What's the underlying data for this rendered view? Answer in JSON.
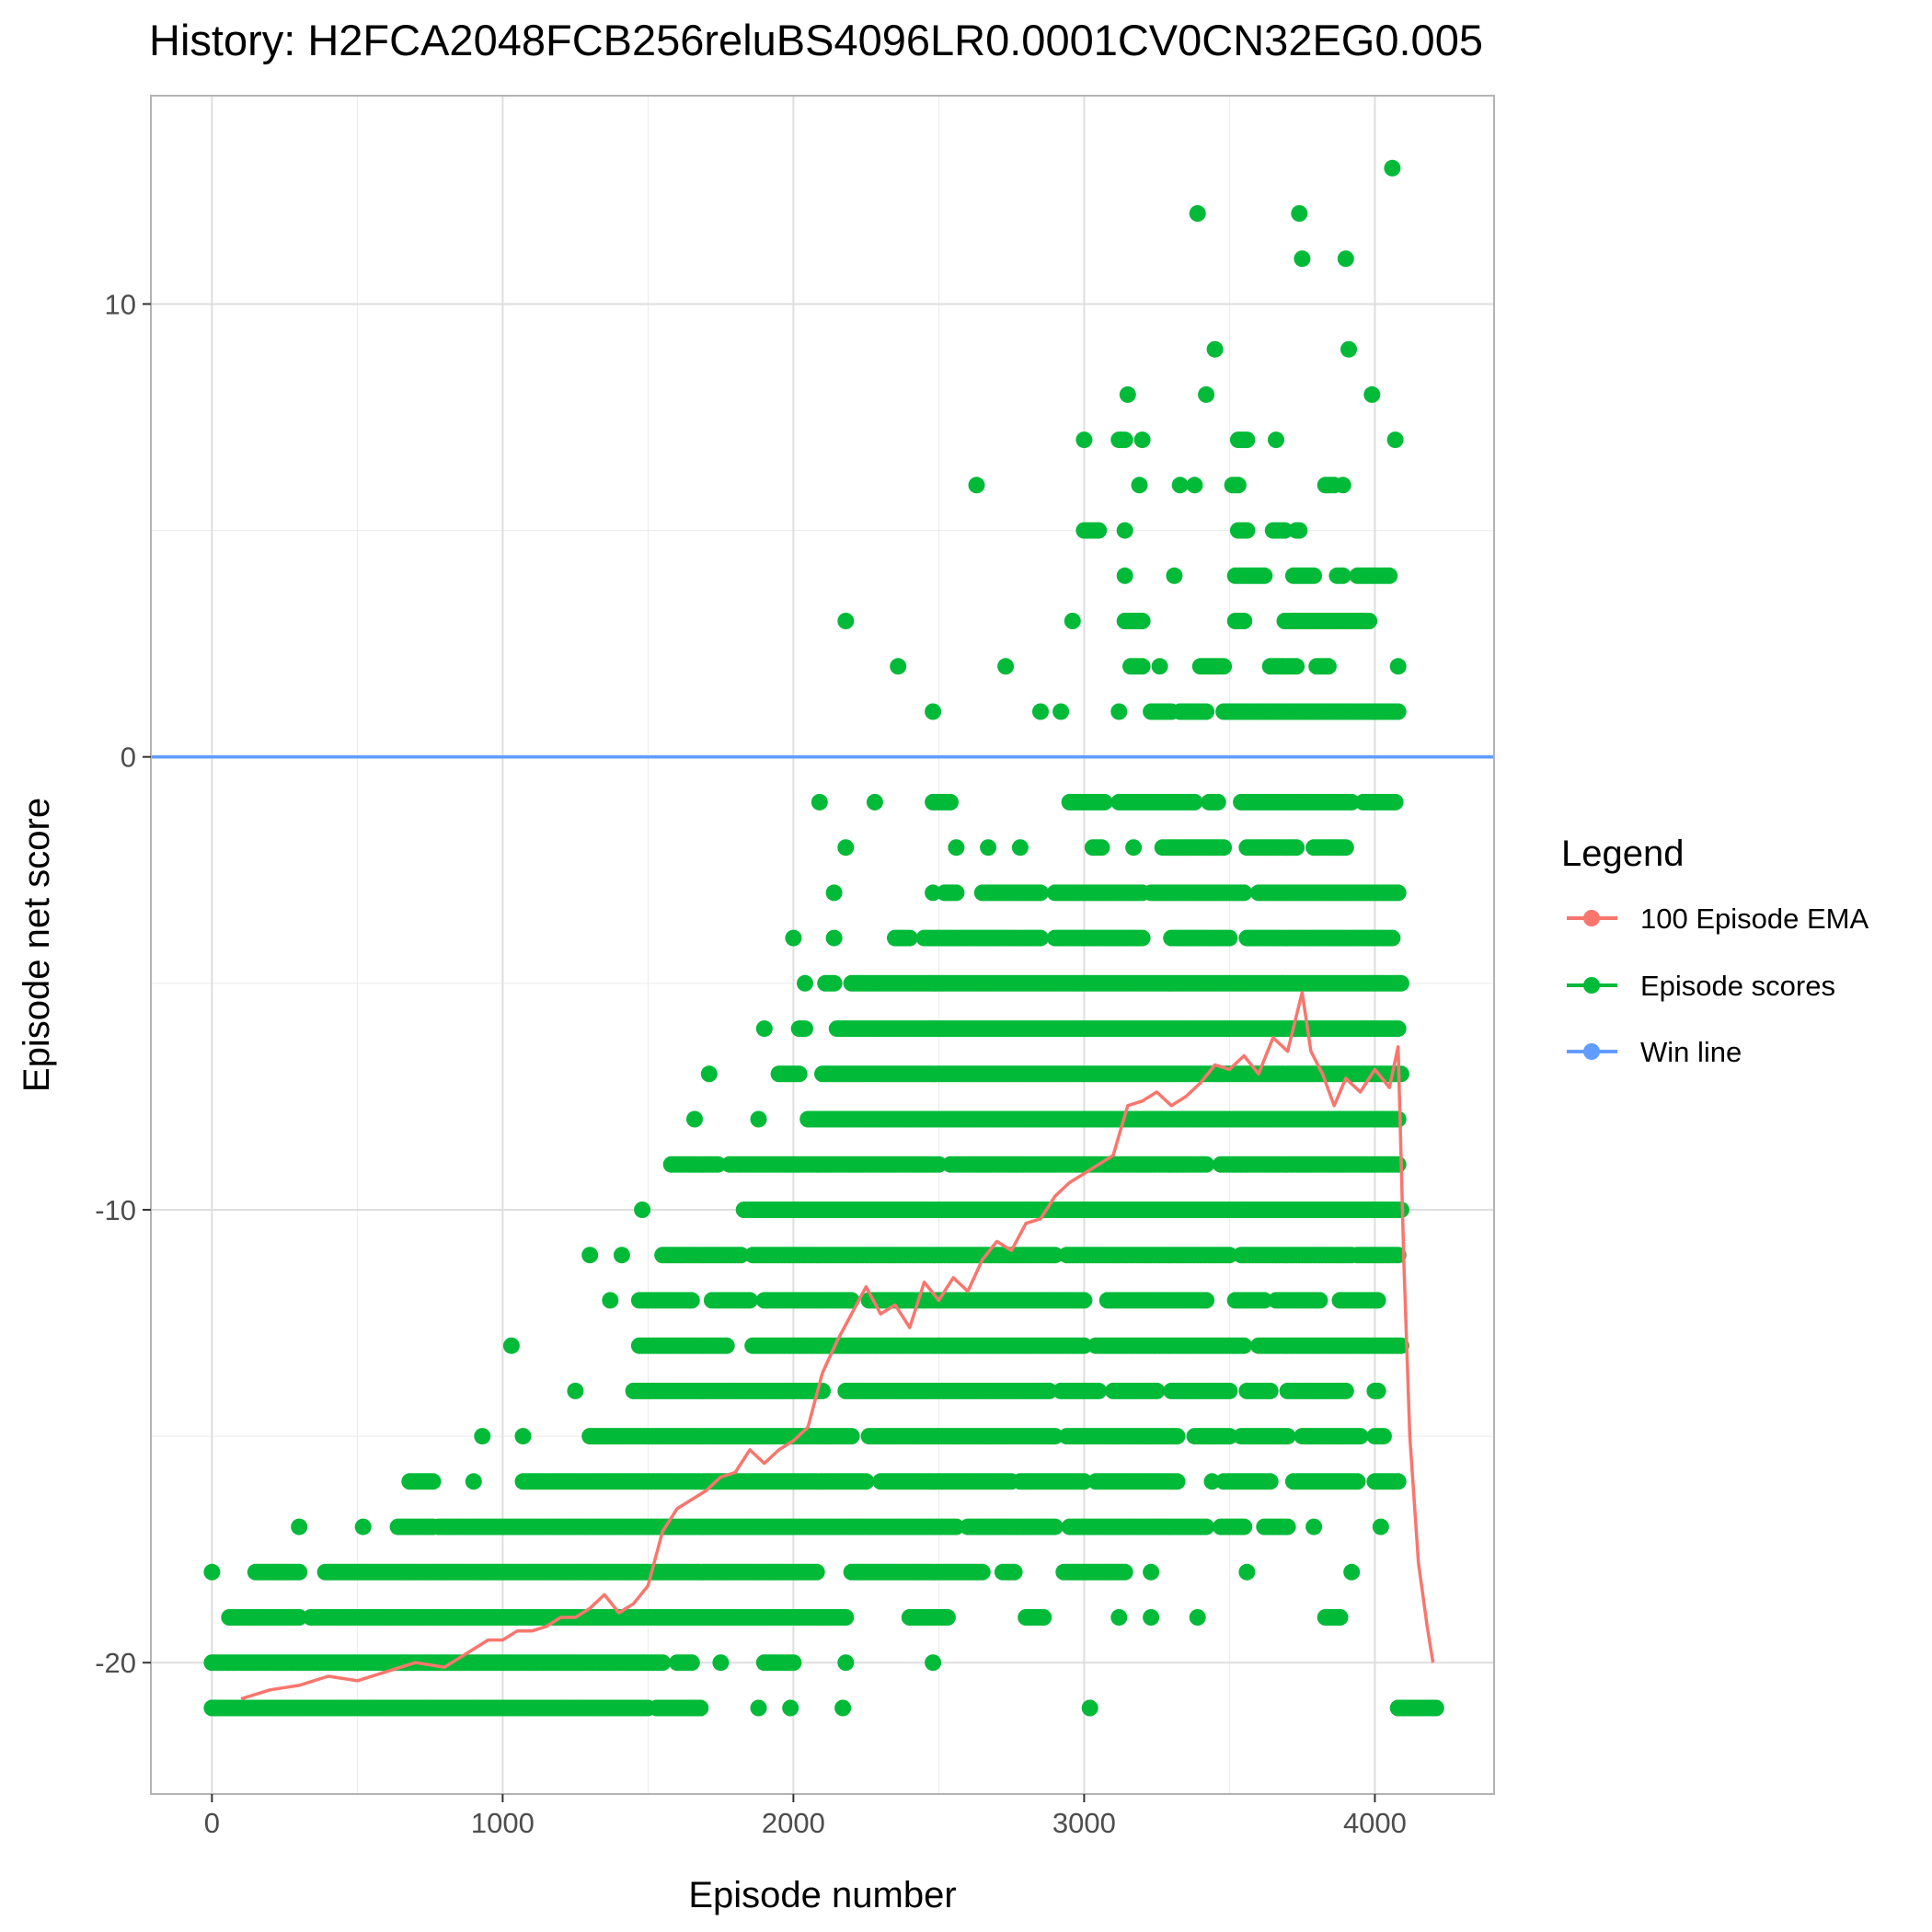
{
  "chart_data": {
    "type": "scatter",
    "title": "History: H2FCA2048FCB256reluBS4096LR0.0001CV0CN32EG0.005",
    "xlabel": "Episode number",
    "ylabel": "Episode net score",
    "xlim": [
      -210,
      4410
    ],
    "ylim": [
      -22.9,
      14.6
    ],
    "x_ticks": [
      0,
      1000,
      2000,
      3000,
      4000
    ],
    "y_ticks": [
      -20,
      -10,
      0,
      10
    ],
    "grid": true,
    "legend": {
      "title": "Legend",
      "position": "right",
      "entries": [
        "100 Episode EMA",
        "Episode scores",
        "Win line"
      ]
    },
    "colors": {
      "ema": "#F8766D",
      "scores": "#00BA38",
      "win": "#619CFF",
      "grid": "#ebebeb",
      "panel_border": "#b3b3b3"
    },
    "series": [
      {
        "name": "Episode scores",
        "kind": "points",
        "description": "Episode scores grouped by score level, listed as [score, first_episode, last_episode]; points are densely packed across each range.",
        "bands": [
          [
            -21,
            0,
            1500
          ],
          [
            -21,
            1530,
            1680
          ],
          [
            -21,
            1880,
            1880
          ],
          [
            -21,
            1990,
            1990
          ],
          [
            -21,
            2170,
            2170
          ],
          [
            -21,
            3020,
            3020
          ],
          [
            -21,
            4080,
            4210
          ],
          [
            -20,
            0,
            1550
          ],
          [
            -20,
            1600,
            1650
          ],
          [
            -20,
            1750,
            1750
          ],
          [
            -20,
            1900,
            2000
          ],
          [
            -20,
            2180,
            2180
          ],
          [
            -20,
            2480,
            2480
          ],
          [
            -19,
            60,
            300
          ],
          [
            -19,
            340,
            2180
          ],
          [
            -19,
            2400,
            2530
          ],
          [
            -19,
            2800,
            2860
          ],
          [
            -19,
            3120,
            3120
          ],
          [
            -19,
            3230,
            3230
          ],
          [
            -19,
            3390,
            3390
          ],
          [
            -19,
            3830,
            3880
          ],
          [
            -18,
            0,
            0
          ],
          [
            -18,
            150,
            300
          ],
          [
            -18,
            390,
            2080
          ],
          [
            -18,
            2200,
            2650
          ],
          [
            -18,
            2720,
            2760
          ],
          [
            -18,
            2930,
            3140
          ],
          [
            -18,
            3230,
            3230
          ],
          [
            -18,
            3560,
            3560
          ],
          [
            -18,
            3920,
            3920
          ],
          [
            -17,
            300,
            300
          ],
          [
            -17,
            520,
            520
          ],
          [
            -17,
            640,
            760
          ],
          [
            -17,
            780,
            2560
          ],
          [
            -17,
            2600,
            2900
          ],
          [
            -17,
            2950,
            3420
          ],
          [
            -17,
            3470,
            3550
          ],
          [
            -17,
            3620,
            3700
          ],
          [
            -17,
            3790,
            3790
          ],
          [
            -17,
            4020,
            4020
          ],
          [
            -16,
            680,
            760
          ],
          [
            -16,
            900,
            900
          ],
          [
            -16,
            1070,
            2250
          ],
          [
            -16,
            2300,
            2750
          ],
          [
            -16,
            2780,
            3000
          ],
          [
            -16,
            3040,
            3320
          ],
          [
            -16,
            3440,
            3440
          ],
          [
            -16,
            3480,
            3640
          ],
          [
            -16,
            3720,
            3940
          ],
          [
            -16,
            4000,
            4080
          ],
          [
            -15,
            930,
            930
          ],
          [
            -15,
            1070,
            1070
          ],
          [
            -15,
            1300,
            2200
          ],
          [
            -15,
            2260,
            2900
          ],
          [
            -15,
            2940,
            3320
          ],
          [
            -15,
            3380,
            3500
          ],
          [
            -15,
            3540,
            3700
          ],
          [
            -15,
            3750,
            3950
          ],
          [
            -15,
            4000,
            4030
          ],
          [
            -14,
            1250,
            1250
          ],
          [
            -14,
            1450,
            2100
          ],
          [
            -14,
            2180,
            2880
          ],
          [
            -14,
            2920,
            3050
          ],
          [
            -14,
            3100,
            3250
          ],
          [
            -14,
            3300,
            3500
          ],
          [
            -14,
            3560,
            3640
          ],
          [
            -14,
            3700,
            3900
          ],
          [
            -14,
            4000,
            4010
          ],
          [
            -13,
            1030,
            1030
          ],
          [
            -13,
            1470,
            1770
          ],
          [
            -13,
            1860,
            3000
          ],
          [
            -13,
            3040,
            3550
          ],
          [
            -13,
            3600,
            4090
          ],
          [
            -12,
            1370,
            1370
          ],
          [
            -12,
            1470,
            1650
          ],
          [
            -12,
            1720,
            1850
          ],
          [
            -12,
            1900,
            2200
          ],
          [
            -12,
            2260,
            3000
          ],
          [
            -12,
            3080,
            3420
          ],
          [
            -12,
            3520,
            3620
          ],
          [
            -12,
            3660,
            3810
          ],
          [
            -12,
            3880,
            4010
          ],
          [
            -11,
            1300,
            1300
          ],
          [
            -11,
            1410,
            1410
          ],
          [
            -11,
            1550,
            1820
          ],
          [
            -11,
            1860,
            2900
          ],
          [
            -11,
            2940,
            3500
          ],
          [
            -11,
            3540,
            3920
          ],
          [
            -11,
            3940,
            4080
          ],
          [
            -10,
            1480,
            1480
          ],
          [
            -10,
            1830,
            4090
          ],
          [
            -9,
            1580,
            1740
          ],
          [
            -9,
            1780,
            2500
          ],
          [
            -9,
            2540,
            3420
          ],
          [
            -9,
            3470,
            4080
          ],
          [
            -8,
            1660,
            1660
          ],
          [
            -8,
            1880,
            1880
          ],
          [
            -8,
            2050,
            4080
          ],
          [
            -7,
            1710,
            1710
          ],
          [
            -7,
            1950,
            2020
          ],
          [
            -7,
            2100,
            4090
          ],
          [
            -6,
            1900,
            1900
          ],
          [
            -6,
            2020,
            2040
          ],
          [
            -6,
            2150,
            4080
          ],
          [
            -5,
            2040,
            2040
          ],
          [
            -5,
            2110,
            2140
          ],
          [
            -5,
            2200,
            4090
          ],
          [
            -4,
            2000,
            2000
          ],
          [
            -4,
            2140,
            2140
          ],
          [
            -4,
            2350,
            2400
          ],
          [
            -4,
            2450,
            2850
          ],
          [
            -4,
            2900,
            3200
          ],
          [
            -4,
            3300,
            3500
          ],
          [
            -4,
            3560,
            4060
          ],
          [
            -3,
            2140,
            2140
          ],
          [
            -3,
            2480,
            2480
          ],
          [
            -3,
            2520,
            2560
          ],
          [
            -3,
            2650,
            2850
          ],
          [
            -3,
            2900,
            3200
          ],
          [
            -3,
            3230,
            3550
          ],
          [
            -3,
            3600,
            4080
          ],
          [
            -2,
            2180,
            2180
          ],
          [
            -2,
            2560,
            2560
          ],
          [
            -2,
            2670,
            2670
          ],
          [
            -2,
            2780,
            2780
          ],
          [
            -2,
            3030,
            3060
          ],
          [
            -2,
            3170,
            3170
          ],
          [
            -2,
            3270,
            3480
          ],
          [
            -2,
            3560,
            3730
          ],
          [
            -2,
            3790,
            3900
          ],
          [
            -1,
            2090,
            2090
          ],
          [
            -1,
            2280,
            2280
          ],
          [
            -1,
            2480,
            2540
          ],
          [
            -1,
            2950,
            3070
          ],
          [
            -1,
            3120,
            3380
          ],
          [
            -1,
            3430,
            3460
          ],
          [
            -1,
            3540,
            3920
          ],
          [
            -1,
            3960,
            4070
          ],
          [
            1,
            2480,
            2480
          ],
          [
            1,
            2850,
            2850
          ],
          [
            1,
            2920,
            2920
          ],
          [
            1,
            3120,
            3120
          ],
          [
            1,
            3230,
            3300
          ],
          [
            1,
            3330,
            3420
          ],
          [
            1,
            3480,
            4080
          ],
          [
            2,
            2360,
            2360
          ],
          [
            2,
            2730,
            2730
          ],
          [
            2,
            3160,
            3200
          ],
          [
            2,
            3260,
            3260
          ],
          [
            2,
            3400,
            3480
          ],
          [
            2,
            3640,
            3730
          ],
          [
            2,
            3800,
            3840
          ],
          [
            2,
            4080,
            4080
          ],
          [
            3,
            2180,
            2180
          ],
          [
            3,
            2960,
            2960
          ],
          [
            3,
            3140,
            3200
          ],
          [
            3,
            3520,
            3550
          ],
          [
            3,
            3690,
            3980
          ],
          [
            4,
            3140,
            3140
          ],
          [
            4,
            3310,
            3310
          ],
          [
            4,
            3520,
            3620
          ],
          [
            4,
            3720,
            3790
          ],
          [
            4,
            3870,
            3890
          ],
          [
            4,
            3940,
            4050
          ],
          [
            5,
            3000,
            3050
          ],
          [
            5,
            3140,
            3140
          ],
          [
            5,
            3530,
            3560
          ],
          [
            5,
            3650,
            3690
          ],
          [
            5,
            3730,
            3740
          ],
          [
            6,
            2630,
            2630
          ],
          [
            6,
            3190,
            3190
          ],
          [
            6,
            3330,
            3330
          ],
          [
            6,
            3380,
            3380
          ],
          [
            6,
            3510,
            3530
          ],
          [
            6,
            3830,
            3860
          ],
          [
            6,
            3890,
            3890
          ],
          [
            7,
            3000,
            3000
          ],
          [
            7,
            3120,
            3140
          ],
          [
            7,
            3200,
            3200
          ],
          [
            7,
            3530,
            3560
          ],
          [
            7,
            3660,
            3660
          ],
          [
            7,
            4070,
            4070
          ],
          [
            8,
            3150,
            3150
          ],
          [
            8,
            3420,
            3420
          ],
          [
            8,
            3990,
            3990
          ],
          [
            9,
            3450,
            3450
          ],
          [
            9,
            3910,
            3910
          ],
          [
            11,
            3750,
            3750
          ],
          [
            11,
            3900,
            3900
          ],
          [
            12,
            3390,
            3390
          ],
          [
            12,
            3740,
            3740
          ],
          [
            13,
            4060,
            4060
          ]
        ]
      },
      {
        "name": "100 Episode EMA",
        "kind": "line",
        "x": [
          100,
          200,
          300,
          400,
          500,
          600,
          700,
          800,
          850,
          900,
          950,
          1000,
          1050,
          1100,
          1150,
          1200,
          1250,
          1300,
          1350,
          1400,
          1450,
          1500,
          1550,
          1600,
          1650,
          1700,
          1750,
          1800,
          1850,
          1900,
          1950,
          2000,
          2050,
          2100,
          2150,
          2200,
          2250,
          2300,
          2350,
          2400,
          2450,
          2500,
          2550,
          2600,
          2650,
          2700,
          2750,
          2800,
          2850,
          2900,
          2950,
          3000,
          3050,
          3100,
          3150,
          3200,
          3250,
          3300,
          3350,
          3400,
          3450,
          3500,
          3550,
          3600,
          3650,
          3700,
          3750,
          3780,
          3820,
          3860,
          3900,
          3950,
          4000,
          4050,
          4080,
          4100,
          4120,
          4150,
          4180,
          4200
        ],
        "values": [
          -20.8,
          -20.6,
          -20.5,
          -20.3,
          -20.4,
          -20.2,
          -20.0,
          -20.1,
          -19.9,
          -19.7,
          -19.5,
          -19.5,
          -19.3,
          -19.3,
          -19.2,
          -19.0,
          -19.0,
          -18.8,
          -18.5,
          -18.9,
          -18.7,
          -18.3,
          -17.1,
          -16.6,
          -16.4,
          -16.2,
          -15.9,
          -15.8,
          -15.3,
          -15.6,
          -15.3,
          -15.1,
          -14.8,
          -13.6,
          -12.9,
          -12.3,
          -11.7,
          -12.3,
          -12.1,
          -12.6,
          -11.6,
          -12.0,
          -11.5,
          -11.8,
          -11.1,
          -10.7,
          -10.9,
          -10.3,
          -10.2,
          -9.7,
          -9.4,
          -9.2,
          -9.0,
          -8.8,
          -7.7,
          -7.6,
          -7.4,
          -7.7,
          -7.5,
          -7.2,
          -6.8,
          -6.9,
          -6.6,
          -7.0,
          -6.2,
          -6.5,
          -5.2,
          -6.5,
          -7.0,
          -7.7,
          -7.1,
          -7.4,
          -6.9,
          -7.3,
          -6.4,
          -11.2,
          -15.0,
          -17.8,
          -19.2,
          -20.0
        ]
      },
      {
        "name": "Win line",
        "kind": "hline",
        "y": 0
      }
    ]
  }
}
